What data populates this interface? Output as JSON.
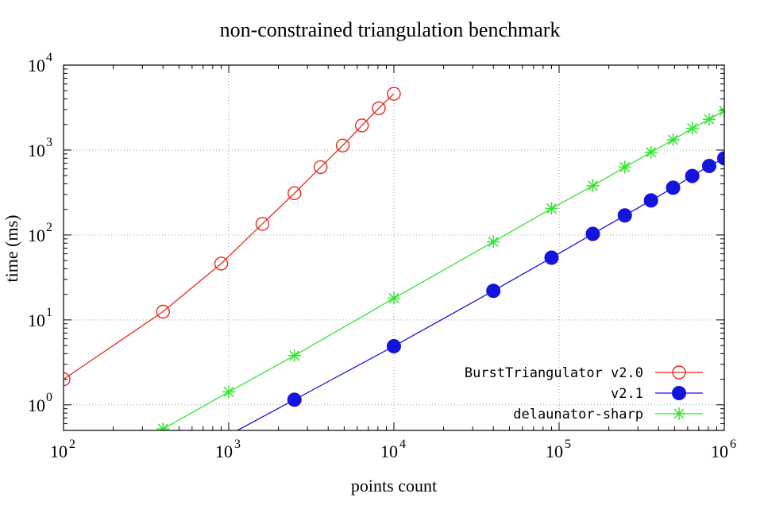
{
  "chart_data": {
    "type": "line",
    "title": "non-constrained triangulation benchmark",
    "xlabel": "points count",
    "ylabel": "time (ms)",
    "xscale": "log",
    "yscale": "log",
    "xlim": [
      100,
      1000000
    ],
    "ylim": [
      0.5,
      10000
    ],
    "grid": true,
    "legend_position": "bottom-right",
    "x_ticks": [
      {
        "value": 100,
        "base": "10",
        "exp": "2"
      },
      {
        "value": 1000,
        "base": "10",
        "exp": "3"
      },
      {
        "value": 10000,
        "base": "10",
        "exp": "4"
      },
      {
        "value": 100000,
        "base": "10",
        "exp": "5"
      },
      {
        "value": 1000000,
        "base": "10",
        "exp": "6"
      }
    ],
    "y_ticks": [
      {
        "value": 1,
        "base": "10",
        "exp": "0"
      },
      {
        "value": 10,
        "base": "10",
        "exp": "1"
      },
      {
        "value": 100,
        "base": "10",
        "exp": "2"
      },
      {
        "value": 1000,
        "base": "10",
        "exp": "3"
      },
      {
        "value": 10000,
        "base": "10",
        "exp": "4"
      }
    ],
    "series": [
      {
        "name": "BurstTriangulator v2.0",
        "color": "#e8281e",
        "marker": "open-circle",
        "x": [
          100,
          400,
          900,
          1600,
          2500,
          3600,
          4900,
          6400,
          8100,
          10000
        ],
        "y": [
          2.0,
          12.5,
          46,
          135,
          310,
          630,
          1130,
          1950,
          3100,
          4600
        ]
      },
      {
        "name": "v2.1",
        "color": "#1414dc",
        "marker": "filled-circle",
        "x": [
          2500,
          10000,
          40000,
          90000,
          160000,
          250000,
          360000,
          490000,
          640000,
          810000,
          1000000
        ],
        "y": [
          1.15,
          4.9,
          22,
          54,
          103,
          170,
          255,
          360,
          495,
          650,
          800
        ]
      },
      {
        "name": "delaunator-sharp",
        "color": "#32e632",
        "marker": "star",
        "x": [
          400,
          1000,
          2500,
          10000,
          40000,
          90000,
          160000,
          250000,
          360000,
          490000,
          640000,
          810000,
          1000000
        ],
        "y": [
          0.52,
          1.42,
          3.8,
          18,
          83,
          205,
          380,
          630,
          940,
          1320,
          1800,
          2300,
          2900
        ]
      }
    ]
  }
}
